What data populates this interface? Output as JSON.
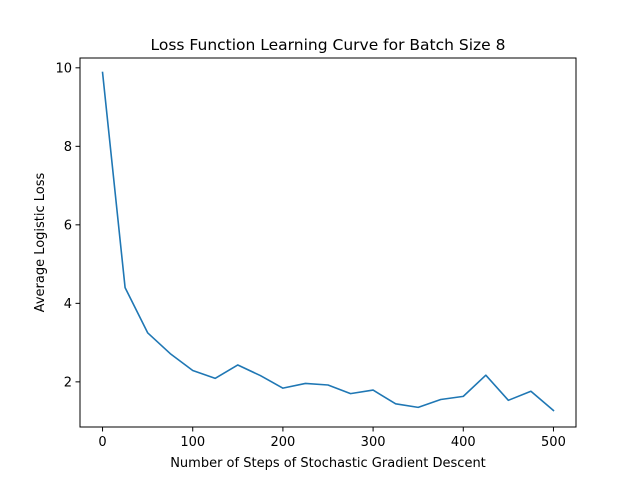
{
  "chart_data": {
    "type": "line",
    "title": "Loss Function Learning Curve for Batch Size 8",
    "xlabel": "Number of Steps of Stochastic Gradient Descent",
    "ylabel": "Average Logistic Loss",
    "xlim": [
      -25,
      525
    ],
    "ylim": [
      0.85,
      10.25
    ],
    "xticks": [
      0,
      100,
      200,
      300,
      400,
      500
    ],
    "yticks": [
      2,
      4,
      6,
      8,
      10
    ],
    "grid": false,
    "legend": "none",
    "series": [
      {
        "color": "#1f77b4",
        "x": [
          0,
          25,
          50,
          75,
          100,
          125,
          150,
          175,
          200,
          225,
          250,
          275,
          300,
          325,
          350,
          375,
          400,
          425,
          450,
          475,
          500
        ],
        "y": [
          9.88,
          4.4,
          3.25,
          2.72,
          2.29,
          2.09,
          2.43,
          2.16,
          1.84,
          1.96,
          1.92,
          1.7,
          1.79,
          1.44,
          1.35,
          1.55,
          1.63,
          2.17,
          1.53,
          1.76,
          1.27
        ]
      }
    ]
  }
}
